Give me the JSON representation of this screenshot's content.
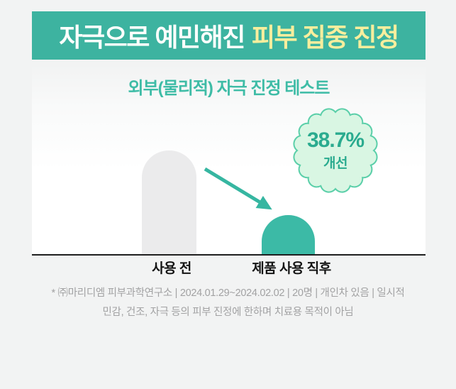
{
  "banner": {
    "text_white": "자극으로 예민해진",
    "text_yellow": "피부 집중 진정",
    "bg_color": "#3db3a0",
    "yellow_color": "#f8ee9d"
  },
  "chart": {
    "title": "외부(물리적) 자극 진정 테스트",
    "title_color": "#3ebca6",
    "bar_colors": [
      "#ebebec",
      "#3cbaa6"
    ],
    "baseline_color": "#1f1f1f"
  },
  "badge": {
    "percent": "38.7%",
    "label": "개선",
    "fill_color": "#d9f6e3",
    "stroke_color": "#5bcfa9",
    "text_color": "#2aab8f"
  },
  "arrow_color": "#36b6a1",
  "footnote": {
    "line1": "* ㈜마리디엠 피부과학연구소 | 2024.01.29~2024.02.02 |  20명 | 개인차 있음 | 일시적",
    "line2": "민감, 건조, 자극 등의 피부 진정에 한하며 치료용 목적이 아님"
  },
  "chart_data": {
    "type": "bar",
    "title": "외부(물리적) 자극 진정 테스트",
    "categories": [
      "사용 전",
      "제품 사용 직후"
    ],
    "values": [
      100,
      38
    ],
    "values_note": "relative bar heights; no numeric axis or gridlines shown",
    "annotation": "38.7% 개선",
    "legend": false,
    "gridlines": false,
    "bar_style": "rounded-top",
    "colors": [
      "#ebebec",
      "#3cbaa6"
    ]
  }
}
